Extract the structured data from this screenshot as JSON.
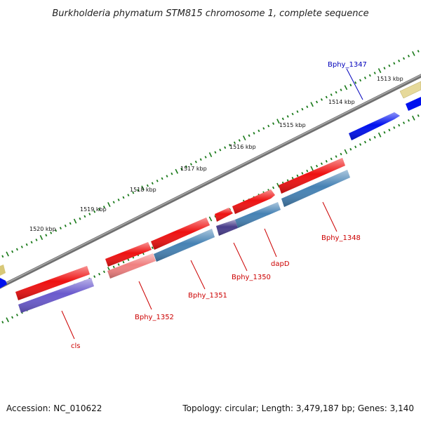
{
  "title": "Burkholderia phymatum STM815 chromosome 1, complete sequence",
  "footer": {
    "accession": "Accession: NC_010622",
    "topology": "Topology: circular; Length: 3,479,187 bp; Genes: 3,140"
  },
  "colors": {
    "backbone": "#808080",
    "ticks": "#1a7a1a",
    "label_red": "#cc0000",
    "label_blue": "#0000bb",
    "gene_red": "#ee1111",
    "gene_blue": "#0011ee",
    "gene_steel": "#4682b4",
    "gene_slate": "#6a5acd",
    "gene_darkslate": "#483d8b",
    "gene_pink": "#f08080",
    "gene_khaki": "#e6d99a"
  },
  "ticks": [
    {
      "label": "1513 kbp"
    },
    {
      "label": "1514 kbp"
    },
    {
      "label": "1515 kbp"
    },
    {
      "label": "1516 kbp"
    },
    {
      "label": "1517 kbp"
    },
    {
      "label": "1518 kbp"
    },
    {
      "label": "1519 kbp"
    },
    {
      "label": "1520 kbp"
    }
  ],
  "gene_labels": [
    {
      "text": "Bphy_1347",
      "color": "blue"
    },
    {
      "text": "Bphy_1348",
      "color": "red"
    },
    {
      "text": "dapD",
      "color": "red"
    },
    {
      "text": "Bphy_1350",
      "color": "red"
    },
    {
      "text": "Bphy_1351",
      "color": "red"
    },
    {
      "text": "Bphy_1352",
      "color": "red"
    },
    {
      "text": "cls",
      "color": "red"
    }
  ]
}
